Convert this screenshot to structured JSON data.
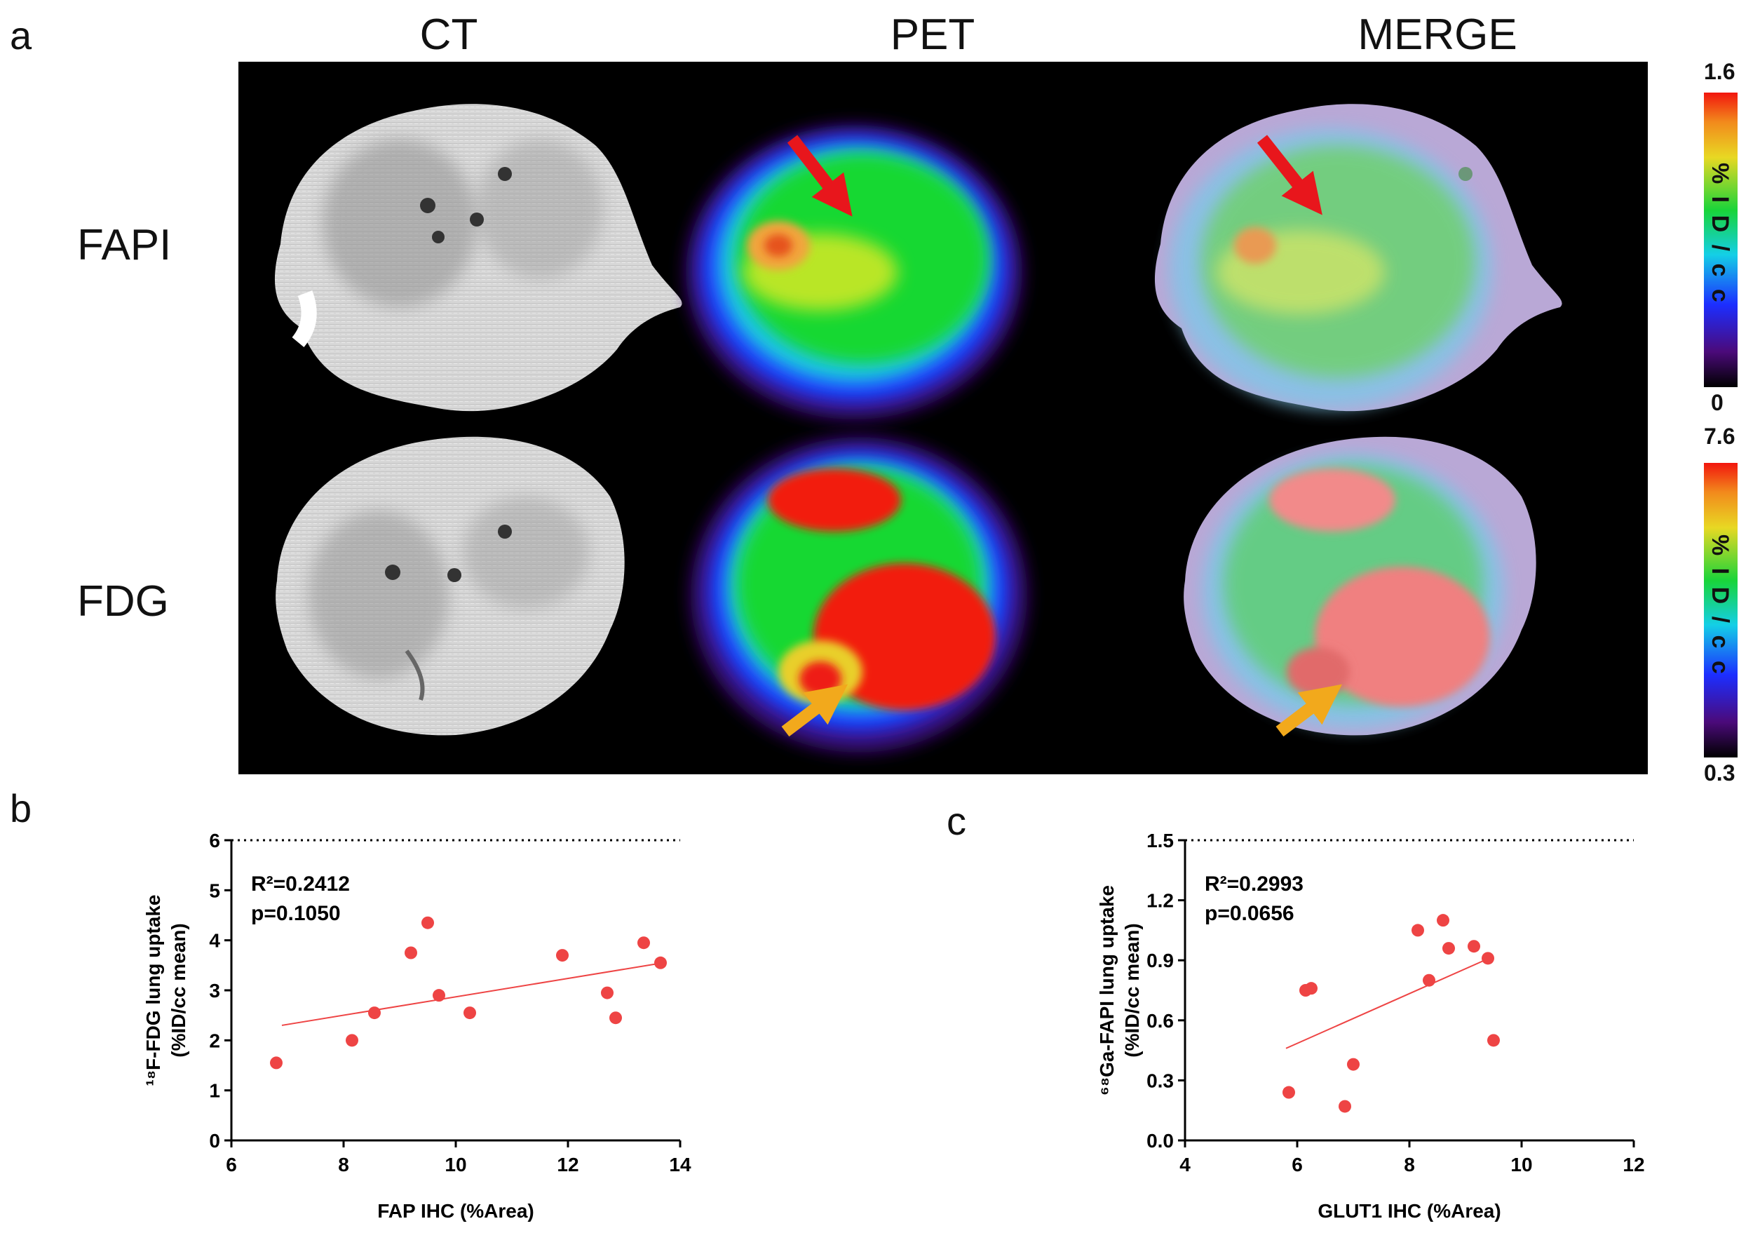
{
  "panels": {
    "a": "a",
    "b": "b",
    "c": "c"
  },
  "columns": [
    "CT",
    "PET",
    "MERGE"
  ],
  "rows": [
    "FAPI",
    "FDG"
  ],
  "colorbars": [
    {
      "max": "1.6",
      "min": "0",
      "unit": "% I D / c c"
    },
    {
      "max": "7.6",
      "min": "0.3",
      "unit": "% I D / c c"
    }
  ],
  "arrows": {
    "fapi_color": "#e8161c",
    "fdg_color": "#f2a91c"
  },
  "chart_data": [
    {
      "type": "scatter",
      "panel": "b",
      "xlabel": "FAP IHC (%Area)",
      "ylabel_line1": "¹⁸F-FDG lung uptake",
      "ylabel_line2": "(%ID/cc mean)",
      "xlim": [
        6,
        14
      ],
      "ylim": [
        0,
        6
      ],
      "xticks": [
        6,
        8,
        10,
        12,
        14
      ],
      "yticks": [
        0,
        1,
        2,
        3,
        4,
        5,
        6
      ],
      "reference_line_y": 6,
      "annotation_r2": "R²=0.2412",
      "annotation_p": "p=0.1050",
      "points": [
        {
          "x": 6.8,
          "y": 1.55
        },
        {
          "x": 8.15,
          "y": 2.0
        },
        {
          "x": 8.55,
          "y": 2.55
        },
        {
          "x": 9.2,
          "y": 3.75
        },
        {
          "x": 9.5,
          "y": 4.35
        },
        {
          "x": 9.7,
          "y": 2.9
        },
        {
          "x": 10.25,
          "y": 2.55
        },
        {
          "x": 11.9,
          "y": 3.7
        },
        {
          "x": 12.7,
          "y": 2.95
        },
        {
          "x": 12.85,
          "y": 2.45
        },
        {
          "x": 13.35,
          "y": 3.95
        },
        {
          "x": 13.65,
          "y": 3.55
        }
      ],
      "fit": {
        "x": [
          6.9,
          13.7
        ],
        "y": [
          2.3,
          3.55
        ]
      },
      "color": "#ee4444"
    },
    {
      "type": "scatter",
      "panel": "c",
      "xlabel": "GLUT1 IHC (%Area)",
      "ylabel_line1": "⁶⁸Ga-FAPI lung uptake",
      "ylabel_line2": "(%ID/cc mean)",
      "xlim": [
        4,
        12
      ],
      "ylim": [
        0,
        1.5
      ],
      "xticks": [
        4,
        6,
        8,
        10,
        12
      ],
      "yticks": [
        0.0,
        0.3,
        0.6,
        0.9,
        1.2,
        1.5
      ],
      "ytick_labels": [
        "0.0",
        "0.3",
        "0.6",
        "0.9",
        "1.2",
        "1.5"
      ],
      "reference_line_y": 1.5,
      "annotation_r2": "R²=0.2993",
      "annotation_p": "p=0.0656",
      "points": [
        {
          "x": 5.85,
          "y": 0.24
        },
        {
          "x": 6.15,
          "y": 0.75
        },
        {
          "x": 6.25,
          "y": 0.76
        },
        {
          "x": 6.85,
          "y": 0.17
        },
        {
          "x": 7.0,
          "y": 0.38
        },
        {
          "x": 8.15,
          "y": 1.05
        },
        {
          "x": 8.35,
          "y": 0.8
        },
        {
          "x": 8.6,
          "y": 1.1
        },
        {
          "x": 8.7,
          "y": 0.96
        },
        {
          "x": 9.15,
          "y": 0.97
        },
        {
          "x": 9.4,
          "y": 0.91
        },
        {
          "x": 9.5,
          "y": 0.5
        }
      ],
      "fit": {
        "x": [
          5.8,
          9.5
        ],
        "y": [
          0.46,
          0.92
        ]
      },
      "color": "#ee4444"
    }
  ]
}
